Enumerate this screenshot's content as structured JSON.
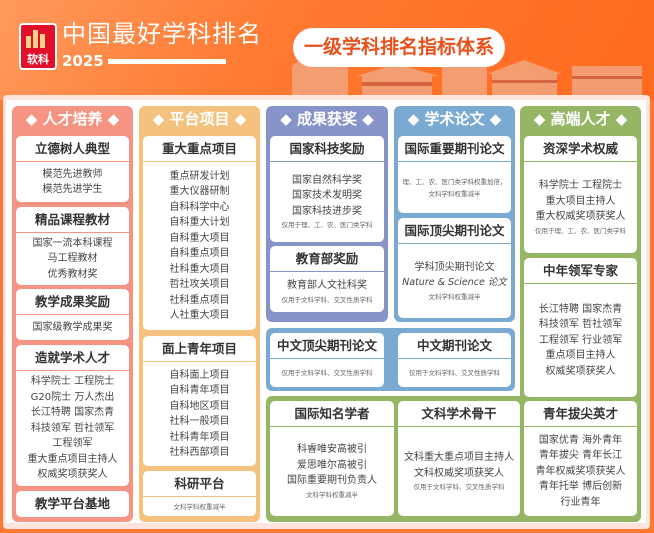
{
  "header": {
    "title": "中国最好学科排名",
    "year": "2025",
    "logo_text": "软科",
    "badge": "一级学科排名指标体系"
  },
  "colors": {
    "talent": "#f59483",
    "platform": "#f4c27e",
    "award": "#8794c9",
    "paper": "#7aaad2",
    "elite": "#95b765"
  },
  "columns": [
    {
      "label": "◆ 人才培养 ◆",
      "cards": [
        {
          "title": "立德树人典型",
          "lines": [
            "模范先进教师",
            "模范先进学生"
          ]
        },
        {
          "title": "精品课程教材",
          "lines": [
            "国家一流本科课程",
            "马工程教材",
            "优秀教材奖"
          ]
        },
        {
          "title": "教学成果奖励",
          "lines": [
            "国家级教学成果奖"
          ]
        },
        {
          "title": "造就学术人才",
          "lines": [
            "科学院士  工程院士",
            "G20院士  万人杰出",
            "长江特聘  国家杰青",
            "科技领军  哲社领军",
            "工程领军",
            "重大重点项目主持人",
            "权威奖项获奖人"
          ]
        },
        {
          "title": "教学平台基地",
          "lines": []
        }
      ]
    },
    {
      "label": "◆ 平台项目 ◆",
      "cards": [
        {
          "title": "重大重点项目",
          "lines": [
            "重点研发计划",
            "重大仪器研制",
            "自科科学中心",
            "自科重大计划",
            "自科重大项目",
            "自科重点项目",
            "社科重大项目",
            "哲社攻关项目",
            "社科重点项目",
            "人社重大项目"
          ]
        },
        {
          "title": "面上青年项目",
          "lines": [
            "自科面上项目",
            "自科青年项目",
            "自科地区项目",
            "社科一般项目",
            "社科青年项目",
            "社科西部项目"
          ]
        },
        {
          "title": "科研平台",
          "lines": [],
          "note": "文科学科权重减半"
        }
      ]
    },
    {
      "label": "◆ 成果获奖 ◆",
      "cards": [
        {
          "title": "国家科技奖励",
          "lines": [
            "国家自然科学奖",
            "国家技术发明奖",
            "国家科技进步奖"
          ],
          "note": "仅用于理、工、农、医门类学科"
        },
        {
          "title": "教育部奖励",
          "lines": [
            "教育部人文社科奖"
          ],
          "note": "仅用于文科学科、交叉性质学科"
        }
      ]
    },
    {
      "label": "◆ 学术论文 ◆",
      "cards": [
        {
          "title": "国际重要期刊论文",
          "lines": [],
          "note": "理、工、农、医门类学科权重加倍，",
          "note2": "文科学科权重减半"
        },
        {
          "title": "国际顶尖期刊论文",
          "lines": [
            "学科顶尖期刊论文"
          ],
          "italic": "Nature & Science 论文",
          "note": "文科学科权重减半"
        },
        {
          "title": "中文顶尖期刊论文",
          "lines": [],
          "note": "仅用于文科学科、交叉性质学科"
        },
        {
          "title": "中文期刊论文",
          "lines": [],
          "note": "仅用于文科学科、交叉性质学科"
        }
      ]
    },
    {
      "label": "◆ 高端人才 ◆",
      "cards": [
        {
          "title": "资深学术权威",
          "lines": [
            "科学院士  工程院士",
            "重大项目主持人",
            "重大权威奖项获奖人"
          ],
          "note": "仅用于理、工、农、医门类学科"
        },
        {
          "title": "中年领军专家",
          "lines": [
            "长江特聘  国家杰青",
            "科技领军  哲社领军",
            "工程领军  行业领军",
            "重点项目主持人",
            "权威奖项获奖人"
          ]
        },
        {
          "title": "青年拔尖英才",
          "lines": [
            "国家优青  海外青年",
            "青年拔尖  青年长江",
            "青年权威奖项获奖人",
            "青年托举  博后创新",
            "行业青年"
          ]
        },
        {
          "title": "国际知名学者",
          "lines": [
            "科睿唯安高被引",
            "爱思唯尔高被引",
            "国际重要期刊负责人"
          ],
          "note": "文科学科权重减半"
        },
        {
          "title": "文科学术骨干",
          "lines": [
            "文科重大重点项目主持人",
            "文科权威奖项获奖人"
          ],
          "note": "仅用于文科学科、交叉性质学科"
        }
      ]
    }
  ]
}
